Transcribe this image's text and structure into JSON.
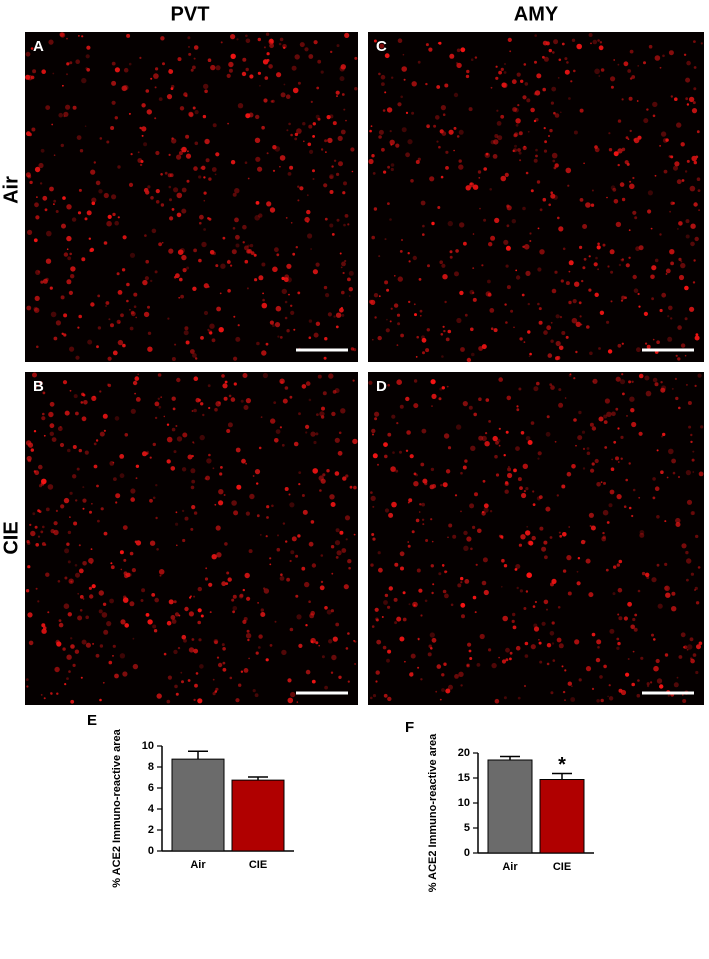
{
  "figure": {
    "columns": [
      "PVT",
      "AMY"
    ],
    "rows": [
      "Air",
      "CIE"
    ],
    "panels": [
      "A",
      "B",
      "C",
      "D"
    ]
  },
  "chart_data": [
    {
      "type": "bar",
      "panel": "E",
      "ylabel": "% ACE2 Immuno-reactive area",
      "categories": [
        "Air",
        "CIE"
      ],
      "values": [
        8.75,
        6.75
      ],
      "errors": [
        0.75,
        0.3
      ],
      "colors": [
        "#6b6b6b",
        "#b00000"
      ],
      "ylim": [
        0,
        10
      ],
      "yticks": [
        0,
        2,
        4,
        6,
        8,
        10
      ]
    },
    {
      "type": "bar",
      "panel": "F",
      "ylabel": "% ACE2 Immuno-reactive area",
      "categories": [
        "Air",
        "CIE"
      ],
      "values": [
        18.6,
        14.7
      ],
      "errors": [
        0.7,
        1.2
      ],
      "colors": [
        "#6b6b6b",
        "#b00000"
      ],
      "ylim": [
        0,
        20
      ],
      "yticks": [
        0,
        5,
        10,
        15,
        20
      ],
      "annotation": "*"
    }
  ]
}
